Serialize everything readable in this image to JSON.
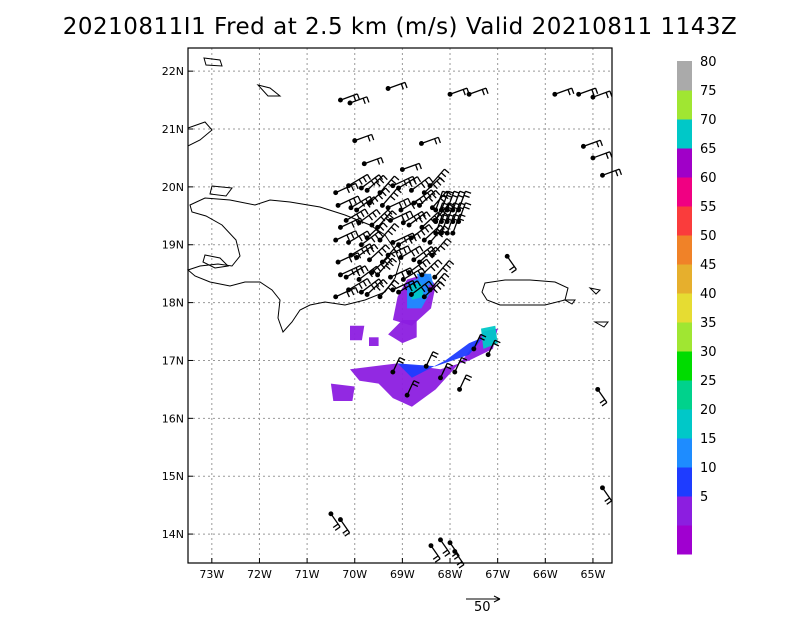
{
  "title": "20210811I1 Fred at 2.5 km (m/s) Valid 20210811  1143Z",
  "map": {
    "lon_min": -73.5,
    "lon_max": -64.6,
    "lat_min": 13.5,
    "lat_max": 22.4,
    "lon_ticks": [
      {
        "value": -73,
        "label": "73W"
      },
      {
        "value": -72,
        "label": "72W"
      },
      {
        "value": -71,
        "label": "71W"
      },
      {
        "value": -70,
        "label": "70W"
      },
      {
        "value": -69,
        "label": "69W"
      },
      {
        "value": -68,
        "label": "68W"
      },
      {
        "value": -67,
        "label": "67W"
      },
      {
        "value": -66,
        "label": "66W"
      },
      {
        "value": -65,
        "label": "65W"
      }
    ],
    "lat_ticks": [
      {
        "value": 14,
        "label": "14N"
      },
      {
        "value": 15,
        "label": "15N"
      },
      {
        "value": 16,
        "label": "16N"
      },
      {
        "value": 17,
        "label": "17N"
      },
      {
        "value": 18,
        "label": "18N"
      },
      {
        "value": 19,
        "label": "19N"
      },
      {
        "value": 20,
        "label": "20N"
      },
      {
        "value": 21,
        "label": "21N"
      },
      {
        "value": 22,
        "label": "22N"
      }
    ],
    "gridlines": "dotted"
  },
  "colorbar": {
    "levels": [
      {
        "label": "",
        "color": "#a000d0"
      },
      {
        "label": "5",
        "color": "#8c1ee0"
      },
      {
        "label": "10",
        "color": "#1e3cff"
      },
      {
        "label": "15",
        "color": "#1e8cff"
      },
      {
        "label": "20",
        "color": "#00c8c8"
      },
      {
        "label": "25",
        "color": "#00d28c"
      },
      {
        "label": "30",
        "color": "#00dc00"
      },
      {
        "label": "35",
        "color": "#a0e632"
      },
      {
        "label": "40",
        "color": "#e6dc32"
      },
      {
        "label": "45",
        "color": "#e6af2d"
      },
      {
        "label": "50",
        "color": "#f08228"
      },
      {
        "label": "55",
        "color": "#fa3c3c"
      },
      {
        "label": "60",
        "color": "#f00082"
      },
      {
        "label": "65",
        "color": "#a000c8"
      },
      {
        "label": "70",
        "color": "#00c8c8"
      },
      {
        "label": "75",
        "color": "#a0e632"
      },
      {
        "label": "80",
        "color": "#aaaaaa"
      }
    ]
  },
  "reference_vector": {
    "label": "50"
  }
}
